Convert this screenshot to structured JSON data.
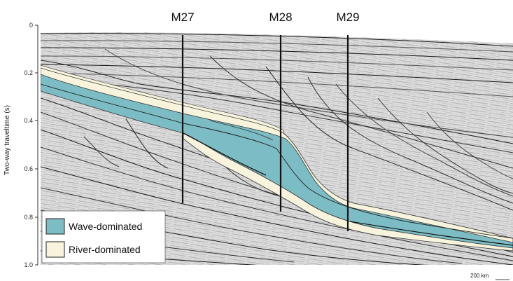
{
  "y_axis": {
    "title": "Two-way traveltime (s)",
    "ticks": [
      "0",
      "0.2",
      "0.4",
      "0.6",
      "0.8",
      "1.0"
    ]
  },
  "wells": [
    "M27",
    "M28",
    "M29"
  ],
  "legend": [
    {
      "label": "Wave-dominated",
      "color": "#7cbcc4"
    },
    {
      "label": "River-dominated",
      "color": "#f7f3dc"
    }
  ],
  "scale_bar": {
    "label": "200 km"
  }
}
